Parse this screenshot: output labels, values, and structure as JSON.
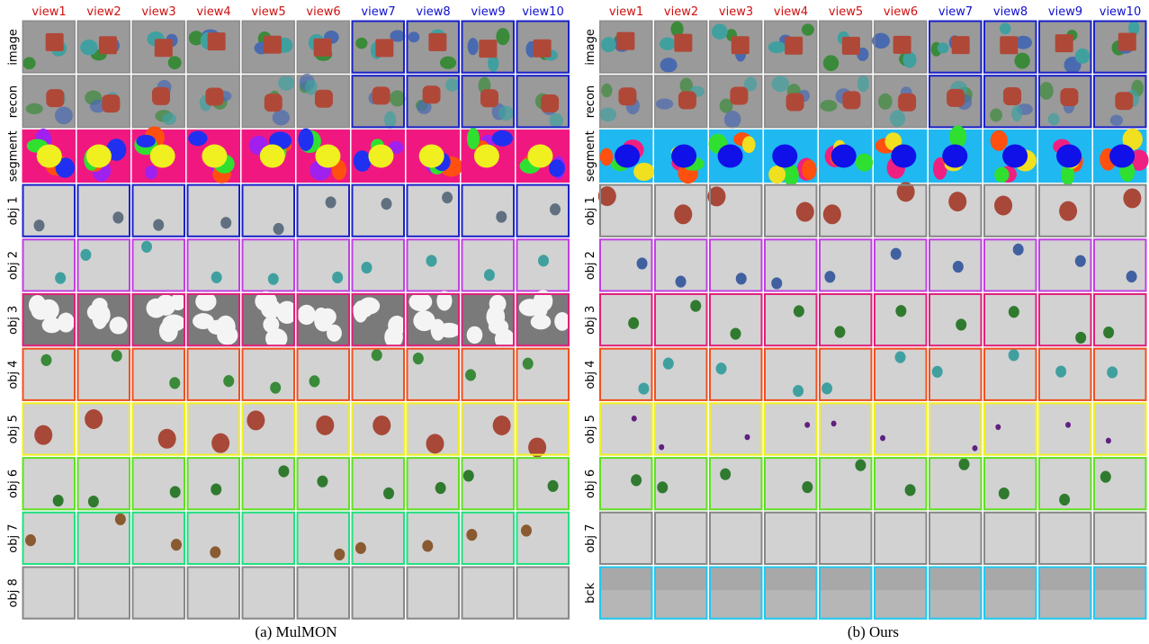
{
  "panels": [
    {
      "column_headers": [
        "view1",
        "view2",
        "view3",
        "view4",
        "view5",
        "view6",
        "view7",
        "view8",
        "view9",
        "view10"
      ],
      "row_labels": [
        "image",
        "recon",
        "segment",
        "obj 1",
        "obj 2",
        "obj 3",
        "obj 4",
        "obj 5",
        "obj 6",
        "obj 7",
        "obj 8"
      ],
      "caption": "(a)  MulMON"
    },
    {
      "column_headers": [
        "view1",
        "view2",
        "view3",
        "view4",
        "view5",
        "view6",
        "view7",
        "view8",
        "view9",
        "view10"
      ],
      "row_labels": [
        "image",
        "recon",
        "segment",
        "obj 1",
        "obj 2",
        "obj 3",
        "obj 4",
        "obj 5",
        "obj 6",
        "obj 7",
        "bck"
      ],
      "caption": "(b)  Ours"
    }
  ]
}
